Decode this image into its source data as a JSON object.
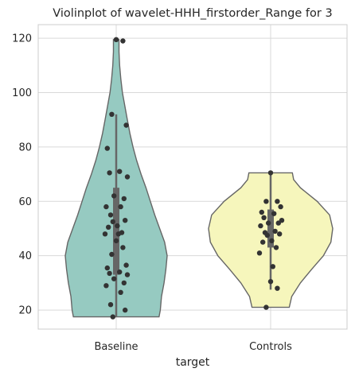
{
  "chart_data": {
    "type": "violin",
    "title": "Violinplot of wavelet-HHH_firstorder_Range for 3",
    "xlabel": "target",
    "ylabel": "",
    "categories": [
      "Baseline",
      "Controls"
    ],
    "ylim": [
      13,
      125
    ],
    "yticks": [
      20,
      40,
      60,
      80,
      100,
      120
    ],
    "grid": true,
    "colors": {
      "Baseline": "#96cac1",
      "Controls": "#f6f6bc",
      "points": "#333333",
      "box": "#666666",
      "outline": "#666666"
    },
    "series": [
      {
        "category": "Baseline",
        "range": [
          17.5,
          119.5
        ],
        "quartiles": [
          33,
          54,
          65
        ],
        "whiskers": [
          17.5,
          92
        ],
        "points": [
          119.5,
          119,
          92,
          88,
          79.5,
          71,
          70.5,
          69,
          62,
          61,
          58,
          58,
          55,
          53,
          52.5,
          51,
          50.5,
          48.5,
          48,
          48,
          45.5,
          43,
          40.5,
          36.5,
          35.5,
          34,
          33.5,
          33,
          31.5,
          30,
          29,
          26.5,
          22,
          20,
          17.5
        ],
        "density": [
          [
            17.5,
            0.69
          ],
          [
            20,
            0.71
          ],
          [
            25,
            0.73
          ],
          [
            30,
            0.77
          ],
          [
            35,
            0.8
          ],
          [
            40,
            0.82
          ],
          [
            45,
            0.78
          ],
          [
            50,
            0.7
          ],
          [
            55,
            0.62
          ],
          [
            60,
            0.55
          ],
          [
            65,
            0.48
          ],
          [
            70,
            0.4
          ],
          [
            75,
            0.33
          ],
          [
            80,
            0.27
          ],
          [
            85,
            0.22
          ],
          [
            90,
            0.18
          ],
          [
            95,
            0.14
          ],
          [
            100,
            0.1
          ],
          [
            105,
            0.075
          ],
          [
            110,
            0.055
          ],
          [
            115,
            0.045
          ],
          [
            119.5,
            0.045
          ]
        ]
      },
      {
        "category": "Controls",
        "range": [
          21,
          70.5
        ],
        "quartiles": [
          43,
          50,
          57
        ],
        "whiskers": [
          27.5,
          70.5
        ],
        "points": [
          70.5,
          60,
          60,
          58,
          56,
          55.5,
          54,
          53,
          52,
          52,
          51,
          49,
          48.5,
          48,
          47.5,
          45.5,
          45,
          43,
          41,
          36,
          30.5,
          28,
          21
        ],
        "density": [
          [
            21,
            0.3
          ],
          [
            25,
            0.34
          ],
          [
            30,
            0.48
          ],
          [
            35,
            0.66
          ],
          [
            40,
            0.85
          ],
          [
            45,
            0.97
          ],
          [
            50,
            1.0
          ],
          [
            55,
            0.95
          ],
          [
            60,
            0.75
          ],
          [
            65,
            0.48
          ],
          [
            68,
            0.37
          ],
          [
            70.5,
            0.35
          ]
        ]
      }
    ]
  }
}
